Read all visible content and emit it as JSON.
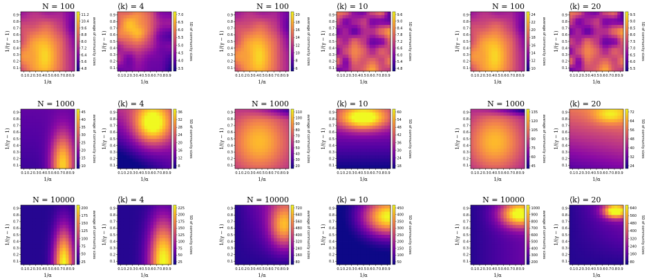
{
  "chart_data": {
    "type": "heatmap",
    "x_ticks": [
      "0.1",
      "0.2",
      "0.3",
      "0.4",
      "0.5",
      "0.6",
      "0.7",
      "0.8",
      "0.9"
    ],
    "y_ticks": [
      "0.1",
      "0.2",
      "0.3",
      "0.4",
      "0.5",
      "0.6",
      "0.7",
      "0.8",
      "0.9"
    ],
    "xlabel": "1/α",
    "ylabel": "1/(γ − 1)",
    "colormap": [
      "#0d0887",
      "#5302a3",
      "#8b0aa5",
      "#b83289",
      "#db5c68",
      "#f48849",
      "#febc2a",
      "#f0f921"
    ],
    "panels": [
      {
        "title": "N = 100",
        "colorbar_label": "average of community sizes",
        "colorbar_ticks": [
          "4.8",
          "5.6",
          "6.4",
          "7.2",
          "8.0",
          "8.8",
          "9.6",
          "10.4",
          "11.2"
        ],
        "pattern": "avg100"
      },
      {
        "title": "⟨k⟩ = 4",
        "colorbar_label": "SD of community sizes",
        "colorbar_ticks": [
          "3.5",
          "4.0",
          "4.5",
          "5.0",
          "5.5",
          "6.0",
          "6.5",
          "7.0"
        ],
        "pattern": "sd100"
      },
      {
        "title": "N = 100",
        "colorbar_label": "average of community sizes",
        "colorbar_ticks": [
          "6",
          "8",
          "10",
          "12",
          "14",
          "16",
          "18",
          "20"
        ],
        "pattern": "avg100"
      },
      {
        "title": "⟨k⟩ = 10",
        "colorbar_label": "SD of community sizes",
        "colorbar_ticks": [
          "4.8",
          "5.4",
          "6.0",
          "6.6",
          "7.2",
          "7.8",
          "8.4",
          "9.0",
          "9.6"
        ],
        "pattern": "noise"
      },
      {
        "title": "N = 100",
        "colorbar_label": "average of community sizes",
        "colorbar_ticks": [
          "10",
          "12",
          "14",
          "16",
          "18",
          "20",
          "22",
          "24"
        ],
        "pattern": "avg100"
      },
      {
        "title": "⟨k⟩ = 20",
        "colorbar_label": "SD of community sizes",
        "colorbar_ticks": [
          "5.5",
          "6.0",
          "6.5",
          "7.0",
          "7.5",
          "8.0",
          "8.5",
          "9.0",
          "9.5"
        ],
        "pattern": "noise"
      },
      {
        "title": "N = 1000",
        "colorbar_label": "average of community sizes",
        "colorbar_ticks": [
          "10",
          "15",
          "20",
          "25",
          "30",
          "35",
          "40",
          "45"
        ],
        "pattern": "avg1000"
      },
      {
        "title": "⟨k⟩ = 4",
        "colorbar_label": "SD of community sizes",
        "colorbar_ticks": [
          "8",
          "12",
          "16",
          "20",
          "24",
          "28",
          "32",
          "36"
        ],
        "pattern": "sd1000"
      },
      {
        "title": "N = 1000",
        "colorbar_label": "average of community sizes",
        "colorbar_ticks": [
          "20",
          "30",
          "40",
          "50",
          "60",
          "70",
          "80",
          "90",
          "100",
          "110"
        ],
        "pattern": "avg1000b"
      },
      {
        "title": "⟨k⟩ = 10",
        "colorbar_label": "SD of community sizes",
        "colorbar_ticks": [
          "18",
          "24",
          "30",
          "36",
          "42",
          "48",
          "54",
          "60"
        ],
        "pattern": "sd1000b"
      },
      {
        "title": "N = 1000",
        "colorbar_label": "average of community sizes",
        "colorbar_ticks": [
          "45",
          "60",
          "75",
          "90",
          "105",
          "120",
          "135"
        ],
        "pattern": "avg1000c"
      },
      {
        "title": "⟨k⟩ = 20",
        "colorbar_label": "SD of community sizes",
        "colorbar_ticks": [
          "24",
          "32",
          "40",
          "48",
          "56",
          "64",
          "72"
        ],
        "pattern": "sd1000c"
      },
      {
        "title": "N = 10000",
        "colorbar_label": "average of community sizes",
        "colorbar_ticks": [
          "25",
          "50",
          "75",
          "100",
          "125",
          "150",
          "175",
          "200"
        ],
        "pattern": "avg10000"
      },
      {
        "title": "⟨k⟩ = 4",
        "colorbar_label": "SD of community sizes",
        "colorbar_ticks": [
          "25",
          "50",
          "75",
          "100",
          "125",
          "150",
          "175",
          "200",
          "225"
        ],
        "pattern": "sd10000"
      },
      {
        "title": "N = 10000",
        "colorbar_label": "average of community sizes",
        "colorbar_ticks": [
          "80",
          "160",
          "240",
          "320",
          "400",
          "480",
          "560",
          "640",
          "720"
        ],
        "pattern": "avg10000b"
      },
      {
        "title": "⟨k⟩ = 10",
        "colorbar_label": "SD of community sizes",
        "colorbar_ticks": [
          "50",
          "100",
          "150",
          "200",
          "250",
          "300",
          "350",
          "400",
          "450"
        ],
        "pattern": "sd10000b"
      },
      {
        "title": "N = 10000",
        "colorbar_label": "average of community sizes",
        "colorbar_ticks": [
          "200",
          "300",
          "400",
          "500",
          "600",
          "700",
          "800",
          "900",
          "1000"
        ],
        "pattern": "avg10000c"
      },
      {
        "title": "⟨k⟩ = 20",
        "colorbar_label": "SD of community sizes",
        "colorbar_ticks": [
          "80",
          "160",
          "240",
          "320",
          "400",
          "480",
          "560",
          "640"
        ],
        "pattern": "sd10000c"
      }
    ]
  }
}
